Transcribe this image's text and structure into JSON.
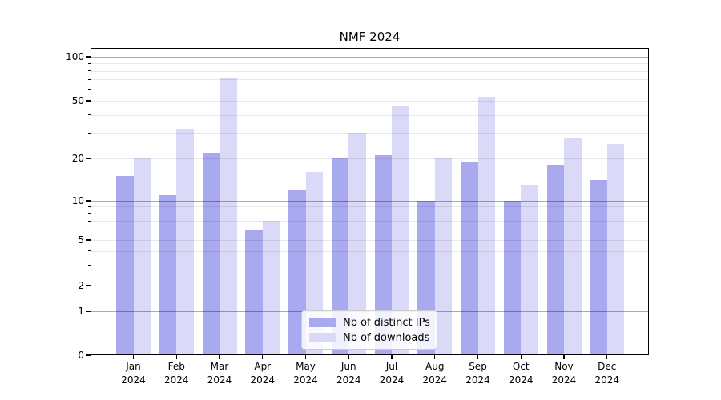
{
  "chart_data": {
    "type": "bar",
    "title": "NMF 2024",
    "categories": [
      "Jan",
      "Feb",
      "Mar",
      "Apr",
      "May",
      "Jun",
      "Jul",
      "Aug",
      "Sep",
      "Oct",
      "Nov",
      "Dec"
    ],
    "category_year": "2024",
    "series": [
      {
        "name": "Nb of distinct IPs",
        "color": "#a9a9f0",
        "values": [
          15,
          11,
          22,
          6,
          12,
          20,
          21,
          10,
          19,
          10,
          18,
          14
        ]
      },
      {
        "name": "Nb of downloads",
        "color": "#dadaf8",
        "values": [
          20,
          32,
          72,
          7,
          16,
          30,
          46,
          20,
          53,
          13,
          28,
          25
        ]
      }
    ],
    "xlabel": "",
    "ylabel": "",
    "yaxis": {
      "scale": "symlog",
      "ylim": [
        0,
        110
      ],
      "tick_labels": [
        0,
        1,
        2,
        5,
        10,
        20,
        50,
        100
      ],
      "major_gridlines": [
        1,
        10,
        100
      ],
      "minor_gridlines": [
        2,
        3,
        4,
        5,
        6,
        7,
        8,
        9,
        20,
        30,
        40,
        50,
        60,
        70,
        80,
        90
      ],
      "minor_tick_marks": [
        3,
        4,
        6,
        7,
        8,
        9,
        30,
        40,
        60,
        70,
        80,
        90
      ]
    },
    "grid": "on",
    "legend_position": "lower center",
    "bar_group_gap_note": "two bars per month, IPs left, downloads right"
  }
}
